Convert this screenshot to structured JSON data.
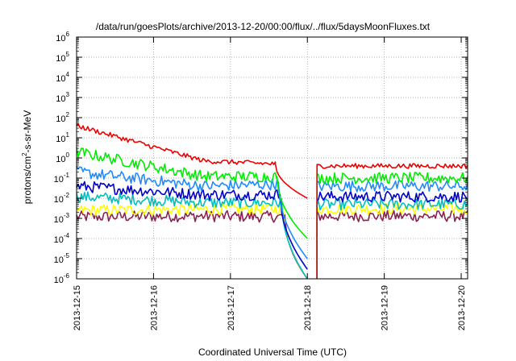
{
  "chart_data": {
    "type": "line",
    "title": "/data/run/goesPlots/archive/2013-12-20/00:00/flux/../flux/5daysMoonFluxes.txt",
    "xlabel": "Coordinated Universal Time (UTC)",
    "ylabel": "protons/cm²-s-sr-MeV",
    "ylabel_main": "protons/cm",
    "ylabel_exp": "2",
    "ylabel_tail": "-s-sr-MeV",
    "x_ticks": [
      "2013-12-15",
      "2013-12-16",
      "2013-12-17",
      "2013-12-18",
      "2013-12-19",
      "2013-12-20"
    ],
    "y_ticks_base": [
      "10",
      "10",
      "10",
      "10",
      "10",
      "10",
      "10",
      "10",
      "10",
      "10",
      "10",
      "10",
      "10"
    ],
    "y_ticks_exp": [
      "-6",
      "-5",
      "-4",
      "-3",
      "-2",
      "-1",
      "0",
      "1",
      "2",
      "3",
      "4",
      "5",
      "6"
    ],
    "x_range": [
      "2013-12-15 00:00",
      "2013-12-20 02:00"
    ],
    "ylim": [
      1e-06,
      1000000.0
    ],
    "y_scale": "log",
    "grid": true,
    "data_gap": [
      "2013-12-18 00:00",
      "2013-12-18 03:00"
    ],
    "series": [
      {
        "color": "#ee0000",
        "level_start": 40,
        "level_mid": 0.7,
        "level_late": 0.5,
        "level_after": 0.4,
        "decay_end": 0.01
      },
      {
        "color": "#00ee00",
        "level_start": 2.0,
        "level_mid": 0.12,
        "level_late": 0.12,
        "level_after": 0.1,
        "decay_end": 0.0001
      },
      {
        "color": "#1e8cff",
        "level_start": 0.2,
        "level_mid": 0.04,
        "level_late": 0.05,
        "level_after": 0.04,
        "decay_end": 1e-05
      },
      {
        "color": "#0000cc",
        "level_start": 0.04,
        "level_mid": 0.015,
        "level_late": 0.015,
        "level_after": 0.012,
        "decay_end": 3e-06
      },
      {
        "color": "#00c0c0",
        "level_start": 0.012,
        "level_mid": 0.006,
        "level_late": 0.006,
        "level_after": 0.005,
        "decay_end": 1e-06
      },
      {
        "color": "#ffff00",
        "level_start": 0.0025,
        "level_mid": 0.0028,
        "level_late": 0.003,
        "level_after": 0.003,
        "decay_end": 1e-06
      },
      {
        "color": "#8b2252",
        "level_start": 0.0012,
        "level_mid": 0.0013,
        "level_late": 0.0012,
        "level_after": 0.0013,
        "decay_end": 1e-06
      }
    ]
  }
}
